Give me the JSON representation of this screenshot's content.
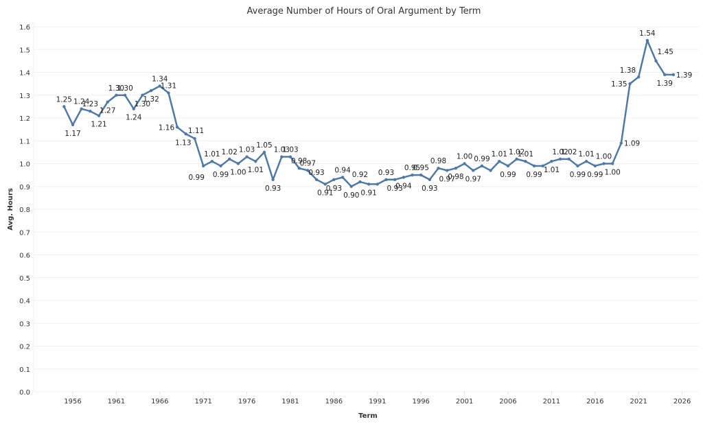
{
  "chart_data": {
    "type": "line",
    "title": "Average Number of Hours of Oral Argument by Term",
    "xlabel": "Term",
    "ylabel": "Avg. Hours",
    "ylim": [
      0,
      1.6
    ],
    "xlim": [
      1954,
      2027
    ],
    "grid": true,
    "legend": "none",
    "yticks": [
      "0.0",
      "0.1",
      "0.2",
      "0.3",
      "0.4",
      "0.5",
      "0.6",
      "0.7",
      "0.8",
      "0.9",
      "1.0",
      "1.1",
      "1.2",
      "1.3",
      "1.4",
      "1.5",
      "1.6"
    ],
    "xticks": [
      "1956",
      "1961",
      "1966",
      "1971",
      "1976",
      "1981",
      "1986",
      "1991",
      "1996",
      "2001",
      "2006",
      "2011",
      "2016",
      "2021",
      "2026"
    ],
    "line_color": "#4e79a7",
    "series": [
      {
        "name": "Avg. Hours",
        "x": [
          1955,
          1956,
          1957,
          1958,
          1959,
          1960,
          1961,
          1962,
          1963,
          1964,
          1965,
          1966,
          1967,
          1968,
          1969,
          1970,
          1971,
          1972,
          1973,
          1974,
          1975,
          1976,
          1977,
          1978,
          1979,
          1980,
          1981,
          1982,
          1983,
          1984,
          1985,
          1986,
          1987,
          1988,
          1989,
          1990,
          1991,
          1992,
          1993,
          1994,
          1995,
          1996,
          1997,
          1998,
          1999,
          2000,
          2001,
          2002,
          2003,
          2004,
          2005,
          2006,
          2007,
          2008,
          2009,
          2010,
          2011,
          2012,
          2013,
          2014,
          2015,
          2016,
          2017,
          2018,
          2019,
          2020,
          2021,
          2022,
          2023,
          2024,
          2025
        ],
        "values": [
          1.25,
          1.17,
          1.24,
          1.23,
          1.21,
          1.27,
          1.3,
          1.3,
          1.24,
          1.3,
          1.32,
          1.34,
          1.31,
          1.16,
          1.13,
          1.11,
          0.99,
          1.01,
          0.99,
          1.02,
          1.0,
          1.03,
          1.01,
          1.05,
          0.93,
          1.03,
          1.03,
          0.98,
          0.97,
          0.93,
          0.91,
          0.93,
          0.94,
          0.9,
          0.92,
          0.91,
          0.91,
          0.93,
          0.93,
          0.94,
          0.95,
          0.95,
          0.93,
          0.98,
          0.97,
          0.98,
          1.0,
          0.97,
          0.99,
          0.97,
          1.01,
          0.99,
          1.02,
          1.01,
          0.99,
          0.99,
          1.01,
          1.02,
          1.02,
          0.99,
          1.01,
          0.99,
          1.0,
          1.0,
          1.09,
          1.35,
          1.38,
          1.54,
          1.45,
          1.39,
          1.39
        ],
        "labels": [
          "1.25",
          "1.17",
          "1.24",
          "1.23",
          "1.21",
          "1.27",
          "1.30",
          "1.30",
          "1.24",
          "1.30",
          "1.32",
          "1.34",
          "1.31",
          "1.16",
          "1.13",
          "1.11",
          "0.99",
          "1.01",
          "0.99",
          "1.02",
          "1.00",
          "1.03",
          "1.01",
          "1.05",
          "0.93",
          "1.03",
          "1.03",
          "0.98",
          "0.97",
          "0.93",
          "0.91",
          "0.93",
          "0.94",
          "0.90",
          "0.92",
          "0.91",
          "",
          "0.93",
          "0.93",
          "0.94",
          "0.95",
          "0.95",
          "0.93",
          "0.98",
          "0.97",
          "0.98",
          "1.00",
          "0.97",
          "0.99",
          "",
          "1.01",
          "0.99",
          "1.02",
          "1.01",
          "0.99",
          "",
          "1.01",
          "1.02",
          "1.02",
          "0.99",
          "1.01",
          "0.99",
          "1.00",
          "1.00",
          "1.09",
          "1.35",
          "1.38",
          "1.54",
          "1.45",
          "1.39",
          "1.39"
        ]
      }
    ]
  }
}
